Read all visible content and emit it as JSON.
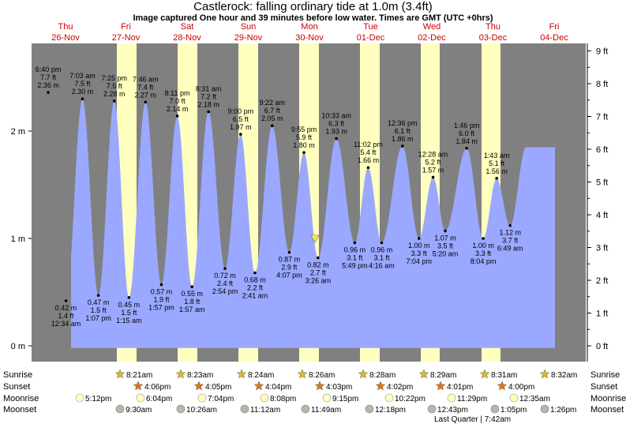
{
  "header": {
    "title": "Castlerock: falling  ordinary tide at 1.0m (3.4ft)",
    "subtitle": "Image captured One hour and 39 minutes before low water. Times are GMT (UTC +0hrs)"
  },
  "days": [
    {
      "dow": "Thu",
      "date": "26-Nov"
    },
    {
      "dow": "Fri",
      "date": "27-Nov"
    },
    {
      "dow": "Sat",
      "date": "28-Nov"
    },
    {
      "dow": "Sun",
      "date": "29-Nov"
    },
    {
      "dow": "Mon",
      "date": "30-Nov"
    },
    {
      "dow": "Tue",
      "date": "01-Dec"
    },
    {
      "dow": "Wed",
      "date": "02-Dec"
    },
    {
      "dow": "Thu",
      "date": "03-Dec"
    },
    {
      "dow": "Fri",
      "date": "04-Dec"
    }
  ],
  "axes": {
    "left_ticks": [
      {
        "label": "0 m",
        "m": 0
      },
      {
        "label": "1 m",
        "m": 1
      },
      {
        "label": "2 m",
        "m": 2
      }
    ],
    "right_ticks": [
      {
        "label": "0 ft",
        "ft": 0
      },
      {
        "label": "1 ft",
        "ft": 1
      },
      {
        "label": "2 ft",
        "ft": 2
      },
      {
        "label": "3 ft",
        "ft": 3
      },
      {
        "label": "4 ft",
        "ft": 4
      },
      {
        "label": "5 ft",
        "ft": 5
      },
      {
        "label": "6 ft",
        "ft": 6
      },
      {
        "label": "7 ft",
        "ft": 7
      },
      {
        "label": "8 ft",
        "ft": 8
      },
      {
        "label": "9 ft",
        "ft": 9
      }
    ]
  },
  "chart_data": {
    "type": "area",
    "title": "Castlerock: falling  ordinary tide at 1.0m (3.4ft)",
    "subtitle": "Image captured One hour and 39 minutes before low water. Times are GMT (UTC +0hrs)",
    "ylim_m": [
      0,
      2.9
    ],
    "ylim_ft": [
      0,
      9.5
    ],
    "current_level_m": 1.0,
    "tides": [
      {
        "day": -0.27,
        "type": "high",
        "time": "6:40 pm",
        "ft": "7.7 ft",
        "m": 2.36
      },
      {
        "day": 0.02,
        "type": "low",
        "time": "12:34 am",
        "ft": "1.4 ft",
        "m": 0.42
      },
      {
        "day": 0.29,
        "type": "high",
        "time": "7:03 am",
        "ft": "7.5 ft",
        "m": 2.3
      },
      {
        "day": 0.55,
        "type": "low",
        "time": "1:07 pm",
        "ft": "1.5 ft",
        "m": 0.47
      },
      {
        "day": 0.81,
        "type": "high",
        "time": "7:25 pm",
        "ft": "7.5 ft",
        "m": 2.28
      },
      {
        "day": 1.05,
        "type": "low",
        "time": "1:15 am",
        "ft": "1.5 ft",
        "m": 0.45
      },
      {
        "day": 1.32,
        "type": "high",
        "time": "7:46 am",
        "ft": "7.4 ft",
        "m": 2.27
      },
      {
        "day": 1.58,
        "type": "low",
        "time": "1:57 pm",
        "ft": "1.9 ft",
        "m": 0.57
      },
      {
        "day": 1.84,
        "type": "high",
        "time": "8:11 pm",
        "ft": "7.0 ft",
        "m": 2.14
      },
      {
        "day": 2.08,
        "type": "low",
        "time": "1:57 am",
        "ft": "1.8 ft",
        "m": 0.55
      },
      {
        "day": 2.35,
        "type": "high",
        "time": "8:31 am",
        "ft": "7.2 ft",
        "m": 2.18
      },
      {
        "day": 2.62,
        "type": "low",
        "time": "2:54 pm",
        "ft": "2.4 ft",
        "m": 0.72
      },
      {
        "day": 2.875,
        "type": "high",
        "time": "9:00 pm",
        "ft": "6.5 ft",
        "m": 1.97
      },
      {
        "day": 3.11,
        "type": "low",
        "time": "2:41 am",
        "ft": "2.2 ft",
        "m": 0.68
      },
      {
        "day": 3.39,
        "type": "high",
        "time": "9:22 am",
        "ft": "6.7 ft",
        "m": 2.05
      },
      {
        "day": 3.67,
        "type": "low",
        "time": "4:07 pm",
        "ft": "2.9 ft",
        "m": 0.87
      },
      {
        "day": 3.91,
        "type": "high",
        "time": "9:55 pm",
        "ft": "5.9 ft",
        "m": 1.8
      },
      {
        "day": 4.14,
        "type": "low",
        "time": "3:26 am",
        "ft": "2.7 ft",
        "m": 0.82
      },
      {
        "day": 4.44,
        "type": "high",
        "time": "10:33 am",
        "ft": "6.3 ft",
        "m": 1.93
      },
      {
        "day": 4.74,
        "type": "low",
        "time": "5:49 pm",
        "ft": "3.1 ft",
        "m": 0.96
      },
      {
        "day": 4.96,
        "type": "high",
        "time": "11:02 pm",
        "ft": "5.4 ft",
        "m": 1.66
      },
      {
        "day": 5.18,
        "type": "low",
        "time": "4:16 am",
        "ft": "3.1 ft",
        "m": 0.96
      },
      {
        "day": 5.52,
        "type": "high",
        "time": "12:36 pm",
        "ft": "6.1 ft",
        "m": 1.86
      },
      {
        "day": 5.79,
        "type": "low",
        "time": "7:04 pm",
        "ft": "3.3 ft",
        "m": 1.0
      },
      {
        "day": 6.02,
        "type": "high",
        "time": "12:28 am",
        "ft": "5.2 ft",
        "m": 1.57
      },
      {
        "day": 6.22,
        "type": "low",
        "time": "5:20 am",
        "ft": "3.5 ft",
        "m": 1.07
      },
      {
        "day": 6.57,
        "type": "high",
        "time": "1:46 pm",
        "ft": "6.0 ft",
        "m": 1.84
      },
      {
        "day": 6.84,
        "type": "low",
        "time": "8:04 pm",
        "ft": "3.3 ft",
        "m": 1.0
      },
      {
        "day": 7.06,
        "type": "high",
        "time": "1:43 am",
        "ft": "5.1 ft",
        "m": 1.56
      },
      {
        "day": 7.28,
        "type": "low",
        "time": "6:49 am",
        "ft": "3.7 ft",
        "m": 1.12
      }
    ]
  },
  "almanac": {
    "labels": {
      "sunrise": "Sunrise",
      "sunset": "Sunset",
      "moonrise": "Moonrise",
      "moonset": "Moonset"
    },
    "sunrise": [
      {
        "day": 1,
        "time": "8:21am"
      },
      {
        "day": 2,
        "time": "8:23am"
      },
      {
        "day": 3,
        "time": "8:24am"
      },
      {
        "day": 4,
        "time": "8:26am"
      },
      {
        "day": 5,
        "time": "8:28am"
      },
      {
        "day": 6,
        "time": "8:29am"
      },
      {
        "day": 7,
        "time": "8:31am"
      },
      {
        "day": 8,
        "time": "8:32am"
      }
    ],
    "sunset": [
      {
        "day": 1,
        "time": "4:06pm"
      },
      {
        "day": 2,
        "time": "4:05pm"
      },
      {
        "day": 3,
        "time": "4:04pm"
      },
      {
        "day": 4,
        "time": "4:03pm"
      },
      {
        "day": 5,
        "time": "4:02pm"
      },
      {
        "day": 6,
        "time": "4:01pm"
      },
      {
        "day": 7,
        "time": "4:00pm"
      }
    ],
    "moonrise": [
      {
        "day": 0,
        "time": "5:12pm"
      },
      {
        "day": 1,
        "time": "6:04pm"
      },
      {
        "day": 2,
        "time": "7:04pm"
      },
      {
        "day": 3,
        "time": "8:08pm"
      },
      {
        "day": 4,
        "time": "9:15pm"
      },
      {
        "day": 5,
        "time": "10:22pm"
      },
      {
        "day": 6,
        "time": "11:29pm"
      },
      {
        "day": 7,
        "time": "12:35am"
      }
    ],
    "moonset": [
      {
        "day": 1,
        "time": "9:30am"
      },
      {
        "day": 2,
        "time": "10:26am"
      },
      {
        "day": 3,
        "time": "11:12am"
      },
      {
        "day": 4,
        "time": "11:49am"
      },
      {
        "day": 5,
        "time": "12:18pm"
      },
      {
        "day": 6,
        "time": "12:43pm"
      },
      {
        "day": 7,
        "time": "1:05pm"
      },
      {
        "day": 8,
        "time": "1:26pm"
      }
    ],
    "moon_phase": "Last Quarter | 7:42am"
  },
  "colors": {
    "background": "#808080",
    "water": "#9aa8ff",
    "daylight": "#ffffc0",
    "marker": "#ffee44",
    "sunrise_star": "#d4b83a",
    "sunset_star": "#d7762a",
    "moonrise": "#ffffc0",
    "moonset": "#b8b8a8",
    "day_label": "#cc0000"
  }
}
